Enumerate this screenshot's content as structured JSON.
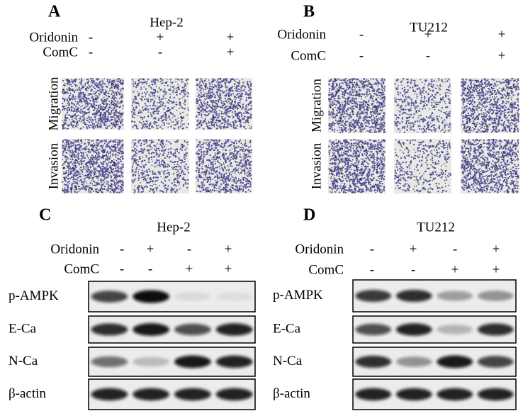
{
  "panels": [
    {
      "letter": "A",
      "title": "Hep-2",
      "conditions": [
        {
          "label": "Oridonin",
          "signs": [
            "-",
            "+",
            "+"
          ]
        },
        {
          "label": "ComC",
          "signs": [
            "-",
            "-",
            "+"
          ]
        }
      ],
      "image_rows": [
        "Migration",
        "Invasion"
      ]
    },
    {
      "letter": "B",
      "title": "TU212",
      "conditions": [
        {
          "label": "Oridonin",
          "signs": [
            "-",
            "+",
            "+"
          ]
        },
        {
          "label": "ComC",
          "signs": [
            "-",
            "-",
            "+"
          ]
        }
      ],
      "image_rows": [
        "Migration",
        "Invasion"
      ]
    },
    {
      "letter": "C",
      "title": "Hep-2",
      "conditions": [
        {
          "label": "Oridonin",
          "signs": [
            "-",
            "+",
            "-",
            "+"
          ]
        },
        {
          "label": "ComC",
          "signs": [
            "-",
            "-",
            "+",
            "+"
          ]
        }
      ],
      "blots": [
        "p-AMPK",
        "E-Ca",
        "N-Ca",
        "β-actin"
      ]
    },
    {
      "letter": "D",
      "title": "TU212",
      "conditions": [
        {
          "label": "Oridonin",
          "signs": [
            "-",
            "+",
            "-",
            "+"
          ]
        },
        {
          "label": "ComC",
          "signs": [
            "-",
            "-",
            "+",
            "+"
          ]
        }
      ],
      "blots": [
        "p-AMPK",
        "E-Ca",
        "N-Ca",
        "β-actin"
      ]
    }
  ]
}
